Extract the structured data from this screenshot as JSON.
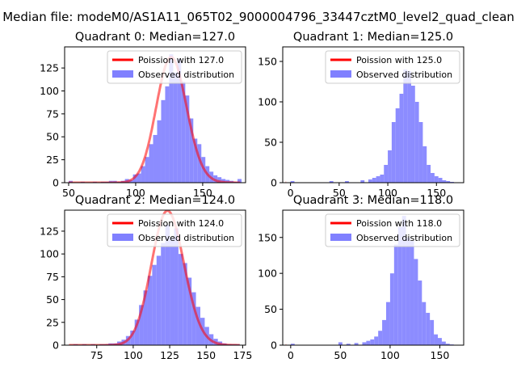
{
  "figure": {
    "suptitle": "Median file: modeM0/AS1A11_065T02_9000004796_33447cztM0_level2_quad_clean"
  },
  "colors": {
    "hist": "#8080ff",
    "poisson_line": "#ff0000",
    "axes": "#000000"
  },
  "chart_data": [
    {
      "type": "bar",
      "title": "Quadrant 0: Median=127.0",
      "xlabel": "",
      "ylabel": "",
      "xlim": [
        47,
        182
      ],
      "ylim": [
        0,
        148
      ],
      "xticks": [
        50,
        100,
        150
      ],
      "yticks": [
        0,
        25,
        50,
        75,
        100,
        125
      ],
      "legend": {
        "position": "top-right",
        "line_label": "Poission with 127.0",
        "bar_label": "Observed distribution"
      },
      "poisson_lambda": 127.0,
      "bin_width": 3,
      "histogram": {
        "bin_start": [
          50,
          53,
          56,
          59,
          62,
          65,
          68,
          71,
          74,
          77,
          80,
          83,
          86,
          89,
          92,
          95,
          98,
          101,
          104,
          107,
          110,
          113,
          116,
          119,
          122,
          125,
          128,
          131,
          134,
          137,
          140,
          143,
          146,
          149,
          152,
          155,
          158,
          161,
          164,
          167,
          170,
          173,
          176
        ],
        "counts": [
          2,
          0,
          0,
          1,
          0,
          0,
          1,
          0,
          1,
          1,
          2,
          2,
          1,
          2,
          4,
          3,
          9,
          10,
          18,
          28,
          42,
          52,
          68,
          90,
          105,
          140,
          120,
          135,
          110,
          95,
          70,
          48,
          42,
          28,
          18,
          12,
          8,
          6,
          4,
          3,
          2,
          1,
          4
        ]
      }
    },
    {
      "type": "bar",
      "title": "Quadrant 1: Median=125.0",
      "xlabel": "",
      "ylabel": "",
      "xlim": [
        -8,
        178
      ],
      "ylim": [
        0,
        168
      ],
      "xticks": [
        0,
        50,
        100,
        150
      ],
      "yticks": [
        0,
        50,
        100,
        150
      ],
      "legend": {
        "position": "top-right",
        "line_label": "Poission with 125.0",
        "bar_label": "Observed distribution"
      },
      "poisson_lambda": 125.0,
      "bin_width": 4,
      "histogram": {
        "bin_start": [
          0,
          40,
          56,
          72,
          80,
          84,
          88,
          92,
          96,
          100,
          104,
          108,
          112,
          116,
          120,
          124,
          128,
          132,
          136,
          140,
          144,
          148,
          152,
          156,
          160,
          164
        ],
        "counts": [
          2,
          2,
          2,
          3,
          4,
          6,
          8,
          10,
          22,
          40,
          75,
          92,
          110,
          140,
          138,
          120,
          100,
          75,
          45,
          22,
          12,
          8,
          6,
          3,
          2,
          1
        ]
      }
    },
    {
      "type": "bar",
      "title": "Quadrant 2: Median=124.0",
      "xlabel": "",
      "ylabel": "",
      "xlim": [
        53,
        177
      ],
      "ylim": [
        0,
        148
      ],
      "xticks": [
        75,
        100,
        125,
        150,
        175
      ],
      "yticks": [
        0,
        25,
        50,
        75,
        100,
        125
      ],
      "legend": {
        "position": "top-right",
        "line_label": "Poission with 124.0",
        "bar_label": "Observed distribution"
      },
      "poisson_lambda": 124.0,
      "bin_width": 3,
      "histogram": {
        "bin_start": [
          59,
          62,
          65,
          68,
          71,
          74,
          77,
          80,
          83,
          86,
          89,
          92,
          95,
          98,
          101,
          104,
          107,
          110,
          113,
          116,
          119,
          122,
          125,
          128,
          131,
          134,
          137,
          140,
          143,
          146,
          149,
          152,
          155,
          158,
          161,
          164,
          167,
          170
        ],
        "counts": [
          1,
          0,
          1,
          0,
          1,
          0,
          1,
          1,
          2,
          2,
          4,
          6,
          10,
          16,
          28,
          44,
          60,
          76,
          88,
          98,
          112,
          132,
          118,
          128,
          100,
          90,
          74,
          58,
          42,
          30,
          20,
          12,
          7,
          4,
          2,
          1,
          1,
          1
        ]
      }
    },
    {
      "type": "bar",
      "title": "Quadrant 3: Median=118.0",
      "xlabel": "",
      "ylabel": "",
      "xlim": [
        -8,
        174
      ],
      "ylim": [
        0,
        188
      ],
      "xticks": [
        0,
        50,
        100,
        150
      ],
      "yticks": [
        0,
        50,
        100,
        150
      ],
      "legend": {
        "position": "top-right",
        "line_label": "Poission with 118.0",
        "bar_label": "Observed distribution"
      },
      "poisson_lambda": 118.0,
      "bin_width": 4,
      "histogram": {
        "bin_start": [
          0,
          48,
          56,
          64,
          72,
          76,
          80,
          84,
          88,
          92,
          96,
          100,
          104,
          108,
          112,
          116,
          120,
          124,
          128,
          132,
          136,
          140,
          144,
          148,
          152,
          156,
          160
        ],
        "counts": [
          2,
          4,
          2,
          3,
          4,
          6,
          8,
          12,
          20,
          35,
          60,
          100,
          140,
          165,
          180,
          150,
          145,
          120,
          90,
          60,
          45,
          35,
          15,
          10,
          5,
          2,
          1
        ]
      }
    }
  ]
}
